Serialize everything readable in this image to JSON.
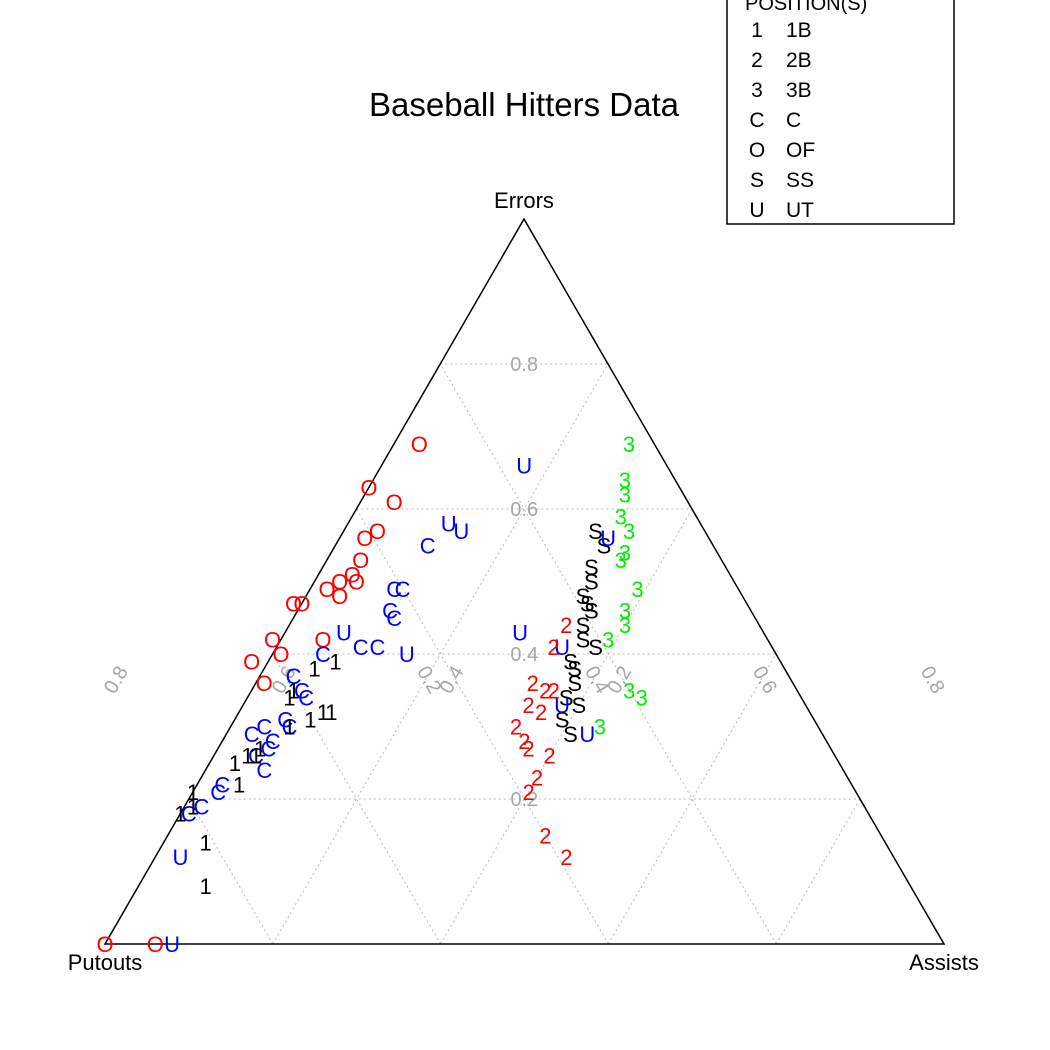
{
  "chart_data": {
    "type": "ternary-scatter",
    "title": "Baseball Hitters Data",
    "vertices": {
      "top": "Errors",
      "left": "Putouts",
      "right": "Assists"
    },
    "grid_ticks": [
      0.2,
      0.4,
      0.6,
      0.8
    ],
    "grid_labels": [
      "0.2",
      "0.4",
      "0.6",
      "0.8"
    ],
    "legend": {
      "title": "POSITION(S)",
      "entries": [
        {
          "symbol": "1",
          "label": "1B",
          "color": "#000000"
        },
        {
          "symbol": "2",
          "label": "2B",
          "color": "#ff0000"
        },
        {
          "symbol": "3",
          "label": "3B",
          "color": "#00ee00"
        },
        {
          "symbol": "C",
          "label": "C",
          "color": "#0000ff"
        },
        {
          "symbol": "O",
          "label": "OF",
          "color": "#ff0000"
        },
        {
          "symbol": "S",
          "label": "SS",
          "color": "#000000"
        },
        {
          "symbol": "U",
          "label": "UT",
          "color": "#0000ff"
        }
      ]
    },
    "points": [
      {
        "s": "O",
        "e": 0.0,
        "a": 0.0
      },
      {
        "s": "O",
        "e": 0.0,
        "a": 0.06
      },
      {
        "s": "U",
        "e": 0.0,
        "a": 0.08
      },
      {
        "s": "O",
        "e": 0.69,
        "a": 0.03
      },
      {
        "s": "O",
        "e": 0.63,
        "a": 0.0
      },
      {
        "s": "O",
        "e": 0.61,
        "a": 0.04
      },
      {
        "s": "O",
        "e": 0.57,
        "a": 0.04
      },
      {
        "s": "O",
        "e": 0.56,
        "a": 0.03
      },
      {
        "s": "O",
        "e": 0.53,
        "a": 0.04
      },
      {
        "s": "O",
        "e": 0.51,
        "a": 0.04
      },
      {
        "s": "O",
        "e": 0.5,
        "a": 0.05
      },
      {
        "s": "O",
        "e": 0.5,
        "a": 0.03
      },
      {
        "s": "O",
        "e": 0.49,
        "a": 0.02
      },
      {
        "s": "O",
        "e": 0.48,
        "a": 0.04
      },
      {
        "s": "O",
        "e": 0.47,
        "a": -0.01
      },
      {
        "s": "O",
        "e": 0.47,
        "a": 0.0
      },
      {
        "s": "O",
        "e": 0.42,
        "a": -0.01
      },
      {
        "s": "O",
        "e": 0.42,
        "a": 0.05
      },
      {
        "s": "O",
        "e": 0.4,
        "a": 0.01
      },
      {
        "s": "O",
        "e": 0.39,
        "a": -0.02
      },
      {
        "s": "O",
        "e": 0.36,
        "a": 0.01
      },
      {
        "s": "U",
        "e": 0.66,
        "a": 0.17
      },
      {
        "s": "U",
        "e": 0.58,
        "a": 0.12
      },
      {
        "s": "U",
        "e": 0.57,
        "a": 0.14
      },
      {
        "s": "C",
        "e": 0.55,
        "a": 0.11
      },
      {
        "s": "C",
        "e": 0.49,
        "a": 0.1
      },
      {
        "s": "C",
        "e": 0.49,
        "a": 0.11
      },
      {
        "s": "C",
        "e": 0.46,
        "a": 0.11
      },
      {
        "s": "C",
        "e": 0.45,
        "a": 0.12
      },
      {
        "s": "U",
        "e": 0.43,
        "a": 0.07
      },
      {
        "s": "C",
        "e": 0.41,
        "a": 0.1
      },
      {
        "s": "C",
        "e": 0.41,
        "a": 0.12
      },
      {
        "s": "U",
        "e": 0.4,
        "a": 0.16
      },
      {
        "s": "C",
        "e": 0.4,
        "a": 0.06
      },
      {
        "s": "C",
        "e": 0.37,
        "a": 0.04
      },
      {
        "s": "C",
        "e": 0.35,
        "a": 0.06
      },
      {
        "s": "C",
        "e": 0.34,
        "a": 0.07
      },
      {
        "s": "C",
        "e": 0.31,
        "a": 0.06
      },
      {
        "s": "C",
        "e": 0.3,
        "a": 0.07
      },
      {
        "s": "C",
        "e": 0.3,
        "a": 0.04
      },
      {
        "s": "C",
        "e": 0.29,
        "a": 0.03
      },
      {
        "s": "C",
        "e": 0.28,
        "a": 0.06
      },
      {
        "s": "C",
        "e": 0.27,
        "a": 0.06
      },
      {
        "s": "C",
        "e": 0.26,
        "a": 0.05
      },
      {
        "s": "C",
        "e": 0.24,
        "a": 0.07
      },
      {
        "s": "C",
        "e": 0.22,
        "a": 0.03
      },
      {
        "s": "C",
        "e": 0.21,
        "a": 0.03
      },
      {
        "s": "C",
        "e": 0.19,
        "a": 0.02
      },
      {
        "s": "C",
        "e": 0.18,
        "a": 0.01
      },
      {
        "s": "1",
        "e": 0.39,
        "a": 0.08
      },
      {
        "s": "1",
        "e": 0.38,
        "a": 0.06
      },
      {
        "s": "1",
        "e": 0.35,
        "a": 0.05
      },
      {
        "s": "1",
        "e": 0.34,
        "a": 0.05
      },
      {
        "s": "1",
        "e": 0.32,
        "a": 0.1
      },
      {
        "s": "1",
        "e": 0.32,
        "a": 0.11
      },
      {
        "s": "1",
        "e": 0.31,
        "a": 0.09
      },
      {
        "s": "1",
        "e": 0.3,
        "a": 0.07
      },
      {
        "s": "1",
        "e": 0.27,
        "a": 0.05
      },
      {
        "s": "1",
        "e": 0.26,
        "a": 0.05
      },
      {
        "s": "1",
        "e": 0.26,
        "a": 0.04
      },
      {
        "s": "1",
        "e": 0.25,
        "a": 0.03
      },
      {
        "s": "1",
        "e": 0.22,
        "a": 0.05
      },
      {
        "s": "1",
        "e": 0.21,
        "a": 0.0
      },
      {
        "s": "1",
        "e": 0.19,
        "a": 0.01
      },
      {
        "s": "1",
        "e": 0.18,
        "a": 0.0
      },
      {
        "s": "1",
        "e": 0.14,
        "a": 0.05
      },
      {
        "s": "U",
        "e": 0.12,
        "a": 0.03
      },
      {
        "s": "1",
        "e": 0.08,
        "a": 0.08
      },
      {
        "s": "3",
        "e": 0.69,
        "a": 0.28
      },
      {
        "s": "3",
        "e": 0.64,
        "a": 0.3
      },
      {
        "s": "3",
        "e": 0.62,
        "a": 0.31
      },
      {
        "s": "3",
        "e": 0.59,
        "a": 0.32
      },
      {
        "s": "3",
        "e": 0.57,
        "a": 0.34
      },
      {
        "s": "3",
        "e": 0.54,
        "a": 0.35
      },
      {
        "s": "3",
        "e": 0.53,
        "a": 0.35
      },
      {
        "s": "3",
        "e": 0.49,
        "a": 0.39
      },
      {
        "s": "3",
        "e": 0.46,
        "a": 0.39
      },
      {
        "s": "3",
        "e": 0.44,
        "a": 0.4
      },
      {
        "s": "3",
        "e": 0.42,
        "a": 0.39
      },
      {
        "s": "3",
        "e": 0.35,
        "a": 0.45
      },
      {
        "s": "3",
        "e": 0.34,
        "a": 0.47
      },
      {
        "s": "3",
        "e": 0.3,
        "a": 0.44
      },
      {
        "s": "S",
        "e": 0.57,
        "a": 0.3
      },
      {
        "s": "S",
        "e": 0.55,
        "a": 0.32
      },
      {
        "s": "S",
        "e": 0.52,
        "a": 0.32
      },
      {
        "s": "S",
        "e": 0.5,
        "a": 0.33
      },
      {
        "s": "S",
        "e": 0.48,
        "a": 0.33
      },
      {
        "s": "S",
        "e": 0.47,
        "a": 0.34
      },
      {
        "s": "S",
        "e": 0.46,
        "a": 0.35
      },
      {
        "s": "S",
        "e": 0.44,
        "a": 0.35
      },
      {
        "s": "S",
        "e": 0.42,
        "a": 0.36
      },
      {
        "s": "S",
        "e": 0.41,
        "a": 0.38
      },
      {
        "s": "S",
        "e": 0.39,
        "a": 0.36
      },
      {
        "s": "S",
        "e": 0.38,
        "a": 0.37
      },
      {
        "s": "S",
        "e": 0.36,
        "a": 0.38
      },
      {
        "s": "S",
        "e": 0.34,
        "a": 0.38
      },
      {
        "s": "S",
        "e": 0.33,
        "a": 0.4
      },
      {
        "s": "S",
        "e": 0.31,
        "a": 0.39
      },
      {
        "s": "S",
        "e": 0.29,
        "a": 0.41
      },
      {
        "s": "U",
        "e": 0.56,
        "a": 0.32
      },
      {
        "s": "U",
        "e": 0.43,
        "a": 0.28
      },
      {
        "s": "U",
        "e": 0.41,
        "a": 0.34
      },
      {
        "s": "U",
        "e": 0.33,
        "a": 0.38
      },
      {
        "s": "U",
        "e": 0.29,
        "a": 0.43
      },
      {
        "s": "2",
        "e": 0.44,
        "a": 0.33
      },
      {
        "s": "2",
        "e": 0.41,
        "a": 0.33
      },
      {
        "s": "2",
        "e": 0.36,
        "a": 0.33
      },
      {
        "s": "2",
        "e": 0.35,
        "a": 0.35
      },
      {
        "s": "2",
        "e": 0.35,
        "a": 0.36
      },
      {
        "s": "2",
        "e": 0.33,
        "a": 0.34
      },
      {
        "s": "2",
        "e": 0.32,
        "a": 0.36
      },
      {
        "s": "2",
        "e": 0.3,
        "a": 0.34
      },
      {
        "s": "2",
        "e": 0.28,
        "a": 0.36
      },
      {
        "s": "2",
        "e": 0.27,
        "a": 0.37
      },
      {
        "s": "2",
        "e": 0.26,
        "a": 0.4
      },
      {
        "s": "2",
        "e": 0.23,
        "a": 0.4
      },
      {
        "s": "2",
        "e": 0.21,
        "a": 0.4
      },
      {
        "s": "2",
        "e": 0.15,
        "a": 0.45
      },
      {
        "s": "2",
        "e": 0.12,
        "a": 0.49
      }
    ]
  }
}
